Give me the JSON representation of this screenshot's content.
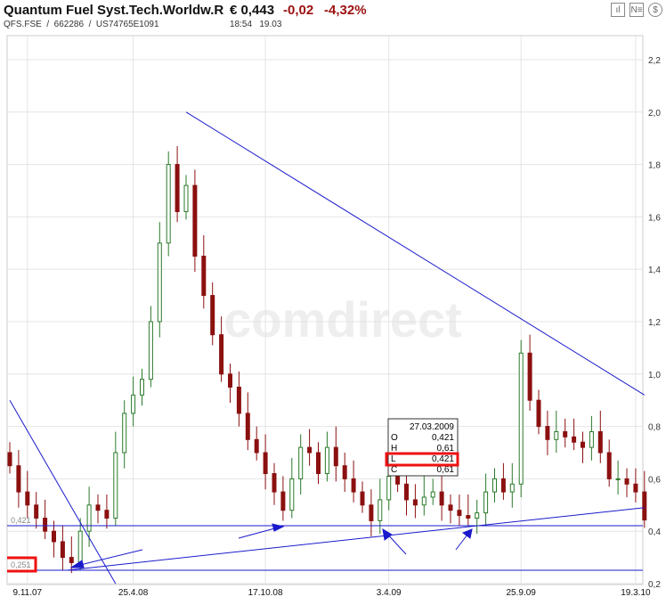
{
  "header": {
    "title": "Quantum Fuel Syst.Tech.Worldw.R",
    "price": "€ 0,443",
    "change": "-0,02",
    "change_pct": "-4,32%",
    "ids": "QFS.FSE  /  662286  /  US74765E1091",
    "time": "18:54",
    "date": "19.03"
  },
  "toolbar": [
    {
      "icon": "bar-chart-icon",
      "glyph": "ıl"
    },
    {
      "icon": "news-icon",
      "glyph": "N≡"
    },
    {
      "icon": "currency-icon",
      "glyph": "$"
    }
  ],
  "watermark": "comdirect",
  "chart_data": {
    "type": "candlestick",
    "x_tick_labels": [
      "9.11.07",
      "25.4.08",
      "17.10.08",
      "3.4.09",
      "25.9.09",
      "19.3.10"
    ],
    "x_tick_index": [
      2,
      14,
      29,
      43,
      58,
      71
    ],
    "y_ticks": [
      "0,2",
      "0,4",
      "0,6",
      "0,8",
      "1,0",
      "1,2",
      "1,4",
      "1,6",
      "1,8",
      "2,0",
      "2,2"
    ],
    "ylim": [
      0.2,
      2.2
    ],
    "first_open": 0.7,
    "closes": [
      0.65,
      0.55,
      0.5,
      0.45,
      0.4,
      0.36,
      0.3,
      0.28,
      0.4,
      0.5,
      0.48,
      0.45,
      0.7,
      0.85,
      0.92,
      0.98,
      1.2,
      1.5,
      1.8,
      1.62,
      1.72,
      1.45,
      1.3,
      1.15,
      1.0,
      0.95,
      0.85,
      0.75,
      0.7,
      0.62,
      0.55,
      0.48,
      0.6,
      0.72,
      0.7,
      0.62,
      0.72,
      0.65,
      0.6,
      0.55,
      0.5,
      0.44,
      0.52,
      0.61,
      0.58,
      0.52,
      0.5,
      0.53,
      0.55,
      0.5,
      0.48,
      0.46,
      0.45,
      0.47,
      0.55,
      0.6,
      0.55,
      0.58,
      1.08,
      0.9,
      0.8,
      0.75,
      0.78,
      0.76,
      0.74,
      0.72,
      0.78,
      0.7,
      0.6,
      0.6,
      0.58,
      0.55,
      0.443
    ],
    "colors": {
      "up": "#2a7a2a",
      "down": "#8b1010",
      "lines": "#1a1acc",
      "highlight": "#ee1111"
    },
    "horizontal_lines": [
      {
        "value": 0.421,
        "label": "0,421"
      },
      {
        "value": 0.251,
        "label": "0,251"
      }
    ],
    "trend_lines": [
      {
        "from": [
          20,
          2.0
        ],
        "to": [
          72,
          0.92
        ]
      },
      {
        "from": [
          0,
          0.9
        ],
        "to": [
          12,
          0.2
        ]
      },
      {
        "from": [
          6.5,
          0.251
        ],
        "to": [
          72,
          0.49
        ]
      }
    ],
    "tooltip": {
      "date": "27.03.2009",
      "rows": [
        {
          "k": "O",
          "v": "0,421"
        },
        {
          "k": "H",
          "v": "0,61"
        },
        {
          "k": "L",
          "v": "0,421"
        },
        {
          "k": "C",
          "v": "0,61"
        }
      ]
    }
  }
}
